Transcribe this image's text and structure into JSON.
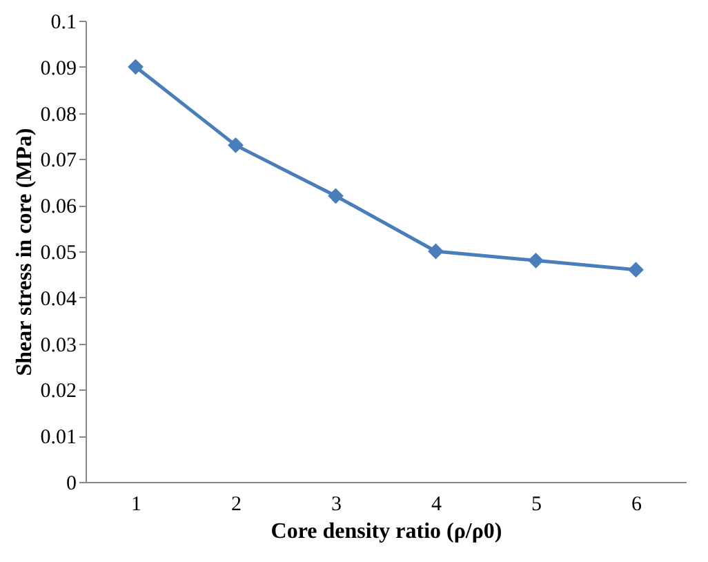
{
  "chart_data": {
    "type": "line",
    "xlabel": "Core  density ratio (ρ/ρ0)",
    "ylabel": "Shear stress in core (MPa)",
    "categories": [
      "1",
      "2",
      "3",
      "4",
      "5",
      "6"
    ],
    "series": [
      {
        "color": "#4a7ebb",
        "values": [
          0.09,
          0.073,
          0.062,
          0.05,
          0.048,
          0.046
        ]
      }
    ],
    "ylim": [
      0,
      0.1
    ],
    "yticks": [
      0,
      0.01,
      0.02,
      0.03,
      0.04,
      0.05,
      0.06,
      0.07,
      0.08,
      0.09,
      0.1
    ],
    "grid": false,
    "marker": "diamond",
    "line_style": "solid"
  }
}
